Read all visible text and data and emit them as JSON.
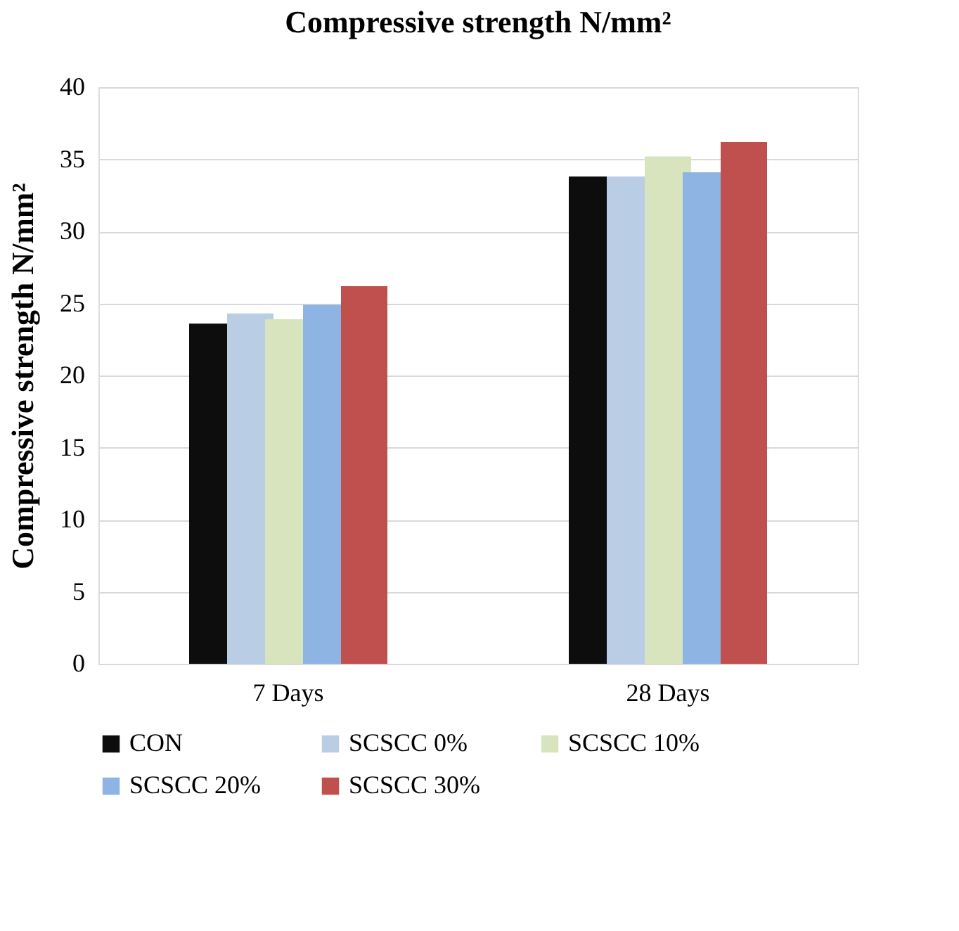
{
  "chart_data": {
    "type": "bar",
    "title": "Compressive strength N/mm²",
    "ylabel": "Compressive strength N/mm²",
    "categories": [
      "7 Days",
      "28 Days"
    ],
    "series": [
      {
        "name": "CON",
        "color": "#0d0d0d",
        "values": [
          23.6,
          33.8
        ]
      },
      {
        "name": "SCSCC 0%",
        "color": "#b9cde5",
        "values": [
          24.3,
          33.8
        ]
      },
      {
        "name": "SCSCC 10%",
        "color": "#d7e4bd",
        "values": [
          23.9,
          35.2
        ]
      },
      {
        "name": "SCSCC 20%",
        "color": "#8eb4e3",
        "values": [
          24.9,
          34.1
        ]
      },
      {
        "name": "SCSCC 30%",
        "color": "#c0504d",
        "values": [
          26.2,
          36.2
        ]
      }
    ],
    "ylim": [
      0,
      40
    ],
    "yticks": [
      0,
      5,
      10,
      15,
      20,
      25,
      30,
      35,
      40
    ],
    "grid": "y",
    "legend": "bottom"
  }
}
